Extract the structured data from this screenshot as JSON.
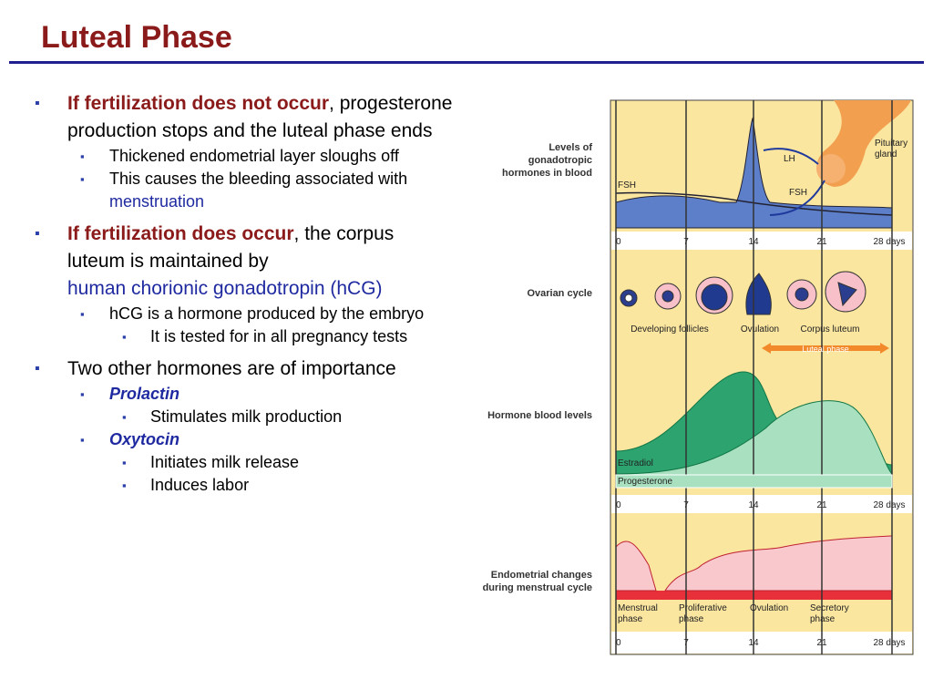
{
  "title": "Luteal Phase",
  "bullets": [
    {
      "lead": "If fertilization does not occur",
      "text": ", progesterone production stops and the luteal phase ends",
      "children": [
        {
          "text": "Thickened endometrial layer sloughs off"
        },
        {
          "text": "This causes the bleeding associated with ",
          "term": "menstruation"
        }
      ]
    },
    {
      "lead": "If fertilization does occur",
      "text": ", the corpus luteum is maintained by ",
      "term": "human chorionic gonadotropin (hCG)",
      "children": [
        {
          "text": "hCG is a hormone produced by the embryo",
          "children": [
            {
              "text": "It is tested for in all pregnancy tests"
            }
          ]
        }
      ]
    },
    {
      "text": "Two other hormones are of importance",
      "children": [
        {
          "term": "Prolactin",
          "children": [
            {
              "text": "Stimulates milk production"
            }
          ]
        },
        {
          "term": "Oxytocin",
          "children": [
            {
              "text": "Initiates milk release"
            },
            {
              "text": "Induces labor"
            }
          ]
        }
      ]
    }
  ],
  "figure": {
    "panels": [
      "Levels of gonadotropic hormones in blood",
      "Ovarian cycle",
      "Hormone blood levels",
      "Endometrial changes during menstrual cycle"
    ],
    "day_labels": [
      "0",
      "7",
      "14",
      "21",
      "28 days"
    ],
    "hormones": {
      "fsh_left": "FSH",
      "lh": "LH",
      "fsh": "FSH",
      "gland": "Pituitary gland"
    },
    "ovarian": [
      "Developing follicles",
      "Ovulation",
      "Corpus luteum"
    ],
    "luteal": "Luteal phase",
    "levels": [
      "Estradiol",
      "Progesterone"
    ],
    "phases": [
      "Menstrual phase",
      "Proliferative phase",
      "Ovulation",
      "Secretory phase"
    ]
  }
}
